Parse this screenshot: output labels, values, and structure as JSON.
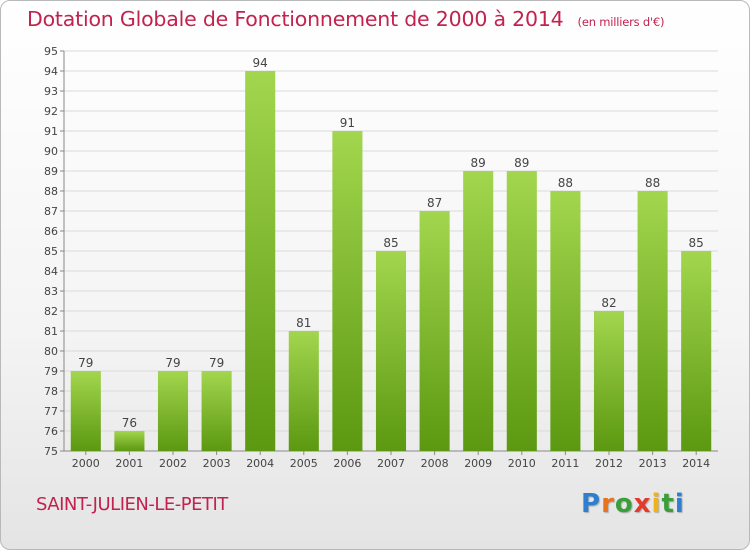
{
  "header": {
    "title": "Dotation Globale de Fonctionnement de 2000 à 2014",
    "subtitle": "(en milliers d'€)"
  },
  "footer": {
    "commune": "SAINT-JULIEN-LE-PETIT",
    "logo_text": "Proxiti"
  },
  "colors": {
    "title": "#c2224e",
    "bar_light": "#9fd44b",
    "bar_dark": "#5e9a12",
    "grid": "#d9d9d9"
  },
  "chart_data": {
    "type": "bar",
    "title": "Dotation Globale de Fonctionnement de 2000 à 2014",
    "subtitle": "(en milliers d'€)",
    "categories": [
      "2000",
      "2001",
      "2002",
      "2003",
      "2004",
      "2005",
      "2006",
      "2007",
      "2008",
      "2009",
      "2010",
      "2011",
      "2012",
      "2013",
      "2014"
    ],
    "values": [
      79,
      76,
      79,
      79,
      94,
      81,
      91,
      85,
      87,
      89,
      89,
      88,
      82,
      88,
      85
    ],
    "xlabel": "",
    "ylabel": "",
    "ylim": [
      75,
      95
    ],
    "yticks": [
      75,
      76,
      77,
      78,
      79,
      80,
      81,
      82,
      83,
      84,
      85,
      86,
      87,
      88,
      89,
      90,
      91,
      92,
      93,
      94,
      95
    ],
    "grid": true,
    "data_labels": true
  }
}
